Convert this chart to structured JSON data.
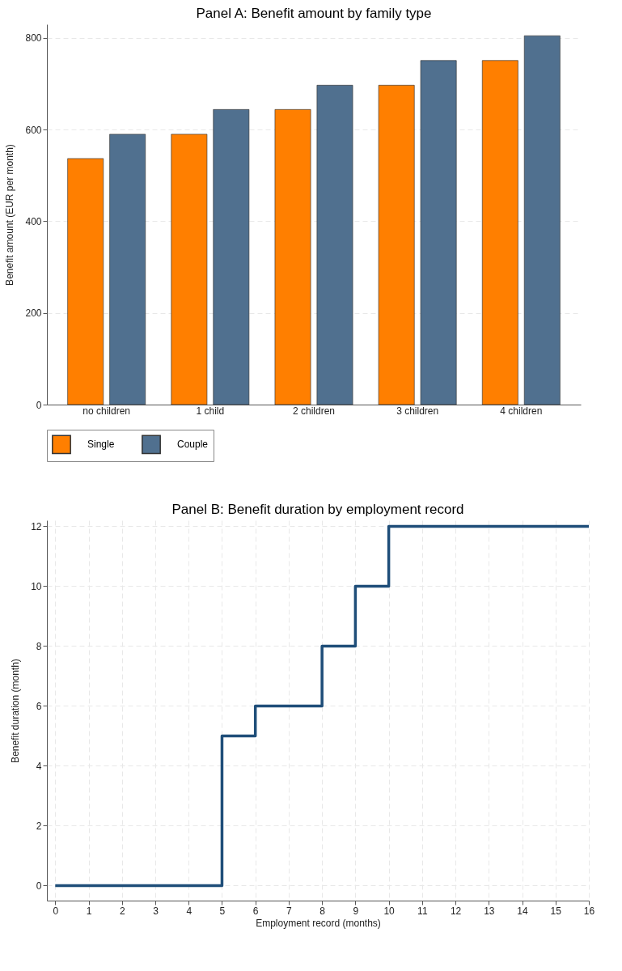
{
  "chart_data": [
    {
      "type": "bar",
      "title": "Panel A: Benefit amount by family type",
      "ylabel": "Benefit amount (EUR per month)",
      "categories": [
        "no children",
        "1 child",
        "2 children",
        "3 children",
        "4 children"
      ],
      "series": [
        {
          "name": "Single",
          "color": "#ff7f00",
          "values": [
            537,
            590,
            644,
            697,
            751
          ]
        },
        {
          "name": "Couple",
          "color": "#50708f",
          "values": [
            590,
            644,
            697,
            751,
            805
          ]
        }
      ],
      "ylim": [
        0,
        830
      ],
      "yticks": [
        0,
        200,
        400,
        600,
        800
      ],
      "grid": "y",
      "legend": "bottom"
    },
    {
      "type": "step",
      "title": "Panel B: Benefit duration by employment record",
      "xlabel": "Employment record (months)",
      "ylabel": "Benefit duration (month)",
      "x": [
        0,
        5,
        6,
        8,
        9,
        10,
        16
      ],
      "values": [
        0,
        5,
        6,
        8,
        10,
        12,
        12
      ],
      "color": "#1f4e79",
      "xlim": [
        -0.25,
        16
      ],
      "xticks": [
        0,
        1,
        2,
        3,
        4,
        5,
        6,
        7,
        8,
        9,
        10,
        11,
        12,
        13,
        14,
        15,
        16
      ],
      "ylim": [
        -0.5,
        12.2
      ],
      "yticks": [
        0,
        2,
        4,
        6,
        8,
        10,
        12
      ],
      "grid": true
    }
  ]
}
